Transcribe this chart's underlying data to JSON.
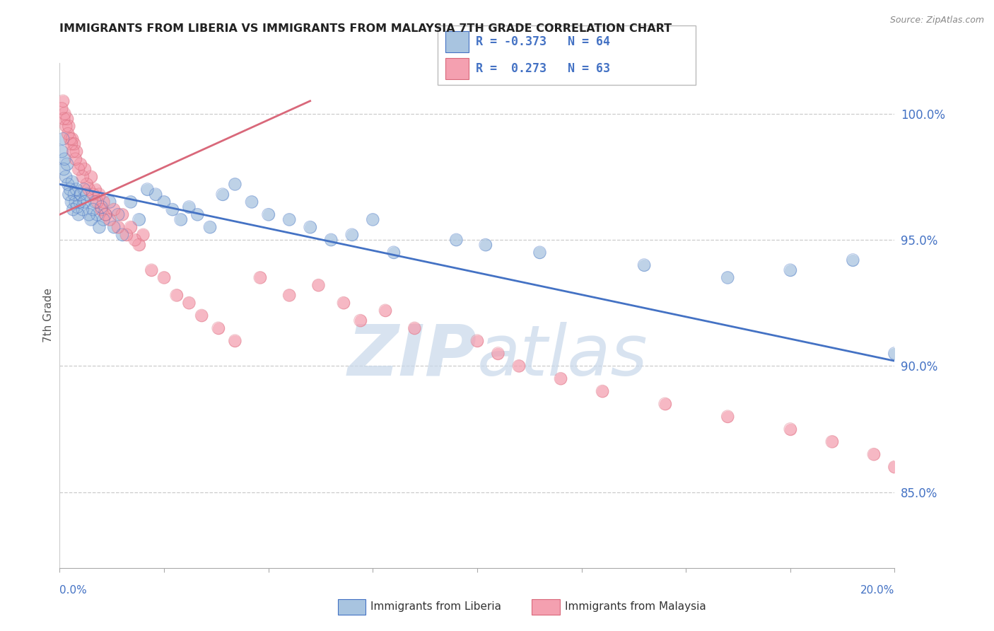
{
  "title": "IMMIGRANTS FROM LIBERIA VS IMMIGRANTS FROM MALAYSIA 7TH GRADE CORRELATION CHART",
  "source": "Source: ZipAtlas.com",
  "ylabel": "7th Grade",
  "xmin": 0.0,
  "xmax": 20.0,
  "ymin": 82.0,
  "ymax": 102.0,
  "yticks": [
    85.0,
    90.0,
    95.0,
    100.0
  ],
  "ytick_labels": [
    "85.0%",
    "90.0%",
    "95.0%",
    "100.0%"
  ],
  "liberia_R": -0.373,
  "liberia_N": 64,
  "malaysia_R": 0.273,
  "malaysia_N": 63,
  "liberia_color": "#a8c4e0",
  "malaysia_color": "#f4a0b0",
  "liberia_line_color": "#4472c4",
  "malaysia_line_color": "#d9687a",
  "legend_label_liberia": "Immigrants from Liberia",
  "legend_label_malaysia": "Immigrants from Malaysia",
  "watermark_zip": "ZIP",
  "watermark_atlas": "atlas",
  "watermark_color": "#c8d8ea",
  "title_color": "#222222",
  "axis_color": "#4472c4",
  "source_color": "#888888",
  "grid_color": "#cccccc",
  "liberia_x": [
    0.05,
    0.08,
    0.1,
    0.12,
    0.15,
    0.18,
    0.2,
    0.22,
    0.25,
    0.28,
    0.3,
    0.32,
    0.35,
    0.38,
    0.4,
    0.42,
    0.45,
    0.48,
    0.5,
    0.55,
    0.58,
    0.6,
    0.65,
    0.7,
    0.75,
    0.8,
    0.85,
    0.9,
    0.95,
    1.0,
    1.05,
    1.1,
    1.2,
    1.3,
    1.4,
    1.5,
    1.7,
    1.9,
    2.1,
    2.3,
    2.5,
    2.7,
    2.9,
    3.1,
    3.3,
    3.6,
    3.9,
    4.2,
    4.6,
    5.0,
    5.5,
    6.0,
    6.5,
    7.0,
    7.5,
    8.0,
    9.5,
    10.2,
    11.5,
    14.0,
    16.0,
    17.5,
    19.0,
    20.0
  ],
  "liberia_y": [
    98.5,
    99.0,
    97.8,
    98.2,
    97.5,
    98.0,
    97.2,
    96.8,
    97.0,
    96.5,
    97.3,
    96.2,
    96.8,
    96.5,
    97.0,
    96.3,
    96.0,
    96.5,
    96.8,
    96.2,
    97.0,
    96.5,
    96.8,
    96.0,
    95.8,
    96.2,
    96.5,
    96.0,
    95.5,
    96.3,
    95.8,
    96.0,
    96.5,
    95.5,
    96.0,
    95.2,
    96.5,
    95.8,
    97.0,
    96.8,
    96.5,
    96.2,
    95.8,
    96.3,
    96.0,
    95.5,
    96.8,
    97.2,
    96.5,
    96.0,
    95.8,
    95.5,
    95.0,
    95.2,
    95.8,
    94.5,
    95.0,
    94.8,
    94.5,
    94.0,
    93.5,
    93.8,
    94.2,
    90.5
  ],
  "malaysia_x": [
    0.05,
    0.08,
    0.1,
    0.12,
    0.15,
    0.18,
    0.2,
    0.22,
    0.25,
    0.28,
    0.3,
    0.32,
    0.35,
    0.38,
    0.4,
    0.45,
    0.5,
    0.55,
    0.6,
    0.65,
    0.7,
    0.75,
    0.8,
    0.85,
    0.9,
    0.95,
    1.0,
    1.05,
    1.1,
    1.2,
    1.3,
    1.4,
    1.5,
    1.6,
    1.7,
    1.8,
    1.9,
    2.0,
    2.2,
    2.5,
    2.8,
    3.1,
    3.4,
    3.8,
    4.2,
    4.8,
    5.5,
    6.2,
    6.8,
    7.2,
    7.8,
    8.5,
    10.0,
    10.5,
    11.0,
    12.0,
    13.0,
    14.5,
    16.0,
    17.5,
    18.5,
    19.5,
    20.0
  ],
  "malaysia_y": [
    100.2,
    100.5,
    99.8,
    100.0,
    99.5,
    99.8,
    99.2,
    99.5,
    99.0,
    98.8,
    99.0,
    98.5,
    98.8,
    98.2,
    98.5,
    97.8,
    98.0,
    97.5,
    97.8,
    97.2,
    97.0,
    97.5,
    96.8,
    97.0,
    96.5,
    96.8,
    96.2,
    96.5,
    96.0,
    95.8,
    96.2,
    95.5,
    96.0,
    95.2,
    95.5,
    95.0,
    94.8,
    95.2,
    93.8,
    93.5,
    92.8,
    92.5,
    92.0,
    91.5,
    91.0,
    93.5,
    92.8,
    93.2,
    92.5,
    91.8,
    92.2,
    91.5,
    91.0,
    90.5,
    90.0,
    89.5,
    89.0,
    88.5,
    88.0,
    87.5,
    87.0,
    86.5,
    86.0
  ],
  "blue_line_x0": 0.0,
  "blue_line_y0": 97.2,
  "blue_line_x1": 20.0,
  "blue_line_y1": 90.2,
  "pink_line_x0": 0.0,
  "pink_line_y0": 96.0,
  "pink_line_x1": 6.0,
  "pink_line_y1": 100.5
}
